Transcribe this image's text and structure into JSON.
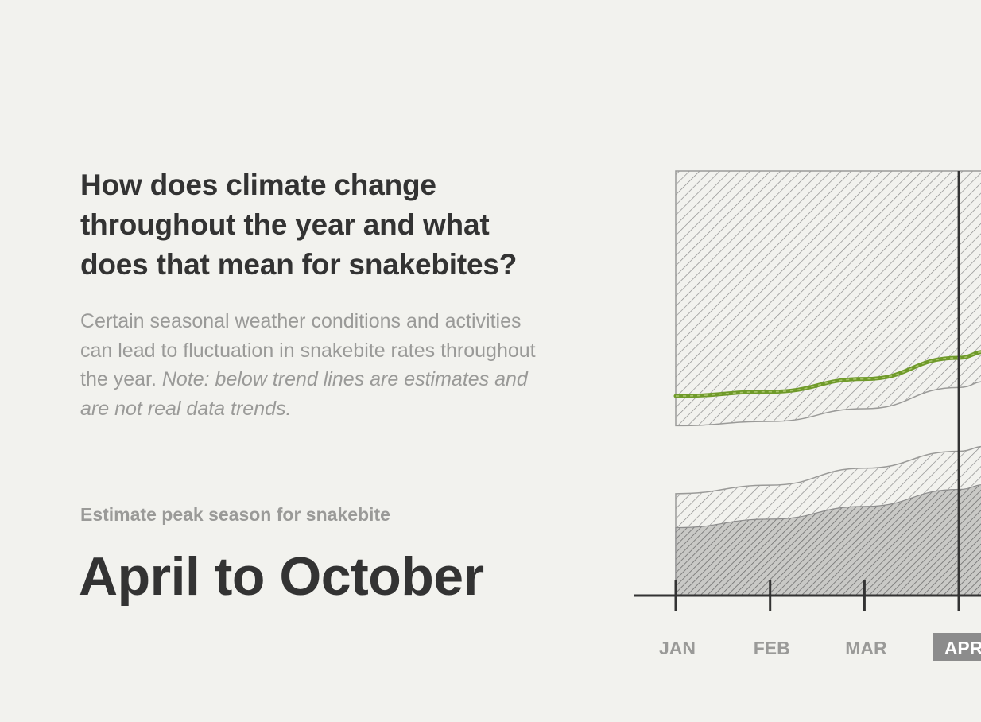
{
  "heading": "How does climate change throughout the year and what does that mean for snakebites?",
  "description": {
    "main": "Certain seasonal weather conditions and activities can lead to fluctuation in snakebite rates throughout the year.",
    "note": "Note: below trend lines are estimates and are not real data trends."
  },
  "peak": {
    "label": "Estimate peak season for snakebite",
    "value": "April to October"
  },
  "colors": {
    "background": "#f2f2ee",
    "trend_line": "#6f9a2a",
    "hatch": "#8c8c8c",
    "axis": "#333333",
    "label": "#9a9a98",
    "highlight_box": "#8c8c8c"
  },
  "chart_data": {
    "type": "area",
    "x": [
      "JAN",
      "FEB",
      "MAR",
      "APR"
    ],
    "highlight": "APR",
    "y_range": [
      0,
      100
    ],
    "grid": false,
    "series": [
      {
        "role": "upper-band-top",
        "values": [
          100,
          100,
          100,
          100
        ]
      },
      {
        "role": "upper-band-bottom",
        "values": [
          40,
          41,
          44,
          49
        ]
      },
      {
        "role": "trend-line",
        "values": [
          47,
          48,
          51,
          56
        ]
      },
      {
        "role": "lower-band-top",
        "values": [
          24,
          26,
          30,
          34
        ]
      },
      {
        "role": "lower-band-bottom-dense-top",
        "values": [
          16,
          18,
          21,
          25
        ]
      }
    ]
  }
}
